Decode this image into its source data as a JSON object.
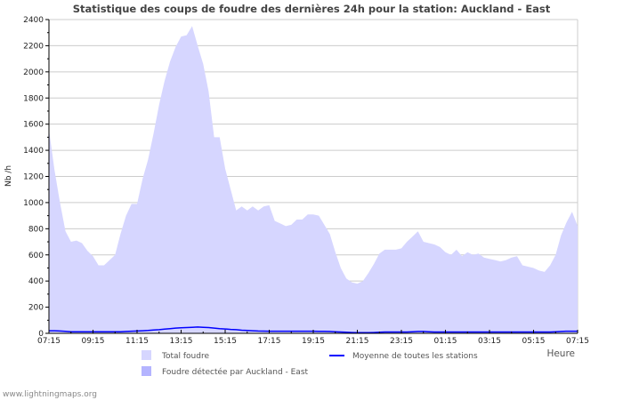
{
  "chart_data": {
    "type": "area",
    "title": "Statistique des coups de foudre des dernières 24h pour la station: Auckland - East",
    "xlabel": "Heure",
    "ylabel": "Nb /h",
    "ylim": [
      0,
      2400
    ],
    "yticks": [
      0,
      200,
      400,
      600,
      800,
      1000,
      1200,
      1400,
      1600,
      1800,
      2000,
      2200,
      2400
    ],
    "xticks": [
      "07:15",
      "09:15",
      "11:15",
      "13:15",
      "15:15",
      "17:15",
      "19:15",
      "21:15",
      "23:15",
      "01:15",
      "03:15",
      "05:15",
      "07:15"
    ],
    "x_step_hours": 0.25,
    "grid": true,
    "series": [
      {
        "name": "Total foudre",
        "color": "#d6d6ff",
        "type": "area",
        "values": [
          1560,
          1250,
          1000,
          780,
          700,
          710,
          690,
          630,
          590,
          520,
          520,
          560,
          600,
          760,
          900,
          990,
          990,
          1180,
          1330,
          1530,
          1750,
          1930,
          2080,
          2190,
          2270,
          2280,
          2350,
          2200,
          2060,
          1850,
          1500,
          1500,
          1260,
          1100,
          940,
          970,
          940,
          970,
          940,
          970,
          980,
          860,
          840,
          820,
          830,
          870,
          870,
          910,
          910,
          900,
          830,
          760,
          620,
          500,
          420,
          390,
          380,
          400,
          460,
          530,
          610,
          640,
          640,
          640,
          650,
          700,
          740,
          780,
          700,
          690,
          680,
          660,
          620,
          600,
          640,
          590,
          620,
          600,
          610,
          580,
          570,
          560,
          550,
          560,
          580,
          590,
          520,
          510,
          500,
          480,
          470,
          520,
          600,
          750,
          850,
          930,
          820
        ]
      },
      {
        "name": "Foudre détectée par Auckland - East",
        "color": "#b4b4ff",
        "type": "area",
        "values": []
      },
      {
        "name": "Moyenne de toutes les stations",
        "color": "#0000ff",
        "type": "line",
        "values": [
          20,
          20,
          18,
          15,
          12,
          12,
          12,
          12,
          12,
          12,
          12,
          12,
          12,
          12,
          14,
          16,
          18,
          20,
          22,
          25,
          28,
          32,
          36,
          40,
          42,
          44,
          46,
          48,
          46,
          44,
          40,
          36,
          33,
          30,
          28,
          24,
          22,
          20,
          18,
          17,
          16,
          16,
          16,
          16,
          16,
          16,
          16,
          16,
          16,
          15,
          15,
          14,
          12,
          10,
          8,
          6,
          5,
          5,
          5,
          6,
          8,
          10,
          10,
          10,
          10,
          10,
          12,
          14,
          14,
          12,
          10,
          10,
          10,
          10,
          10,
          10,
          10,
          10,
          10,
          10,
          10,
          10,
          10,
          10,
          10,
          10,
          10,
          10,
          10,
          10,
          10,
          10,
          12,
          14,
          16,
          16,
          16
        ]
      }
    ],
    "legend_placement": "bottom"
  },
  "footer": "www.lightningmaps.org"
}
